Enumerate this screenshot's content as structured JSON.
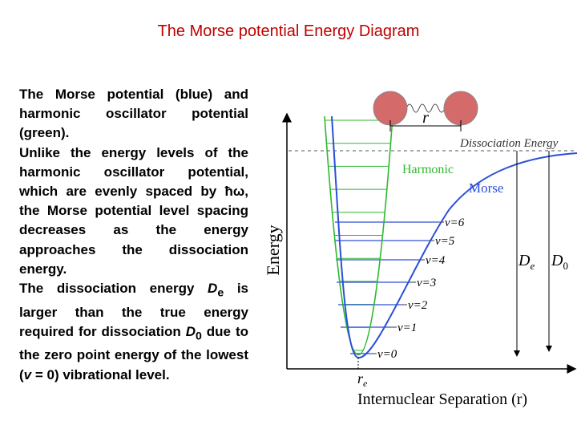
{
  "title": "The Morse potential Energy Diagram",
  "body": {
    "paragraphs": [
      [
        "The Morse potential (blue) and harmonic oscillator potential (green)."
      ],
      [
        "Unlike the energy levels of the harmonic oscillator potential, which are evenly spaced by ħω, the Morse potential level spacing decreases as the energy approaches the dissociation energy."
      ],
      [
        "The dissociation energy ",
        "D",
        "e",
        " is larger than the true energy required for dissociation ",
        "D",
        "0",
        " due to the zero point energy of the lowest (",
        "v",
        " = 0) vibrational level."
      ]
    ]
  },
  "diagram": {
    "y_axis_label": "Energy",
    "x_axis_label": "Internuclear Separation (r)",
    "dissociation_label": "Dissociation Energy",
    "harmonic_label": "Harmonic",
    "morse_label": "Morse",
    "bond_label": "r",
    "levels": [
      "v=0",
      "v=1",
      "v=2",
      "v=3",
      "v=4",
      "v=5",
      "v=6"
    ],
    "de_label": [
      "D",
      "e"
    ],
    "d0_label": [
      "D",
      "0"
    ],
    "re_label": [
      "r",
      "e"
    ]
  }
}
